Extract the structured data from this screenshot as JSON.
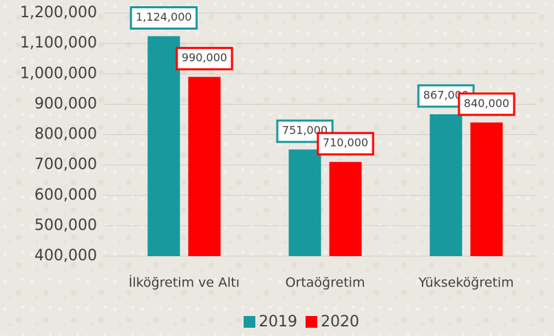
{
  "chart_data": {
    "type": "bar",
    "categories": [
      "İlköğretim ve Altı",
      "Ortaöğretim",
      "Yükseköğretim"
    ],
    "series": [
      {
        "name": "2019",
        "color": "#17999e",
        "values": [
          1124000,
          751000,
          867000
        ],
        "value_labels": [
          "1,124,000",
          "751,000",
          "867,000"
        ]
      },
      {
        "name": "2020",
        "color": "#ff0000",
        "values": [
          990000,
          710000,
          840000
        ],
        "value_labels": [
          "990,000",
          "710,000",
          "840,000"
        ]
      }
    ],
    "ylim": [
      400000,
      1200000
    ],
    "yticks": [
      {
        "value": 400000,
        "label": "400,000"
      },
      {
        "value": 500000,
        "label": "500,000"
      },
      {
        "value": 600000,
        "label": "600,000"
      },
      {
        "value": 700000,
        "label": "700,000"
      },
      {
        "value": 800000,
        "label": "800,000"
      },
      {
        "value": 900000,
        "label": "900,000"
      },
      {
        "value": 1000000,
        "label": "1,000,000"
      },
      {
        "value": 1100000,
        "label": "1,100,000"
      },
      {
        "value": 1200000,
        "label": "1,200,000"
      }
    ],
    "grid": true,
    "legend": "bottom"
  }
}
